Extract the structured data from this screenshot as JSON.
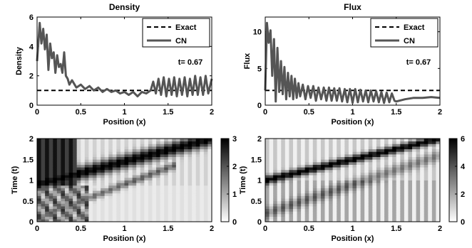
{
  "chart_data": [
    {
      "type": "line",
      "title": "Density",
      "xlabel": "Position (x)",
      "ylabel": "Density",
      "xlim": [
        0,
        2
      ],
      "ylim": [
        0,
        6
      ],
      "xticks": [
        "0",
        "0.5",
        "1",
        "1.5",
        "2"
      ],
      "yticks": [
        "0",
        "2",
        "4",
        "6"
      ],
      "annotation": "t= 0.67",
      "legend": {
        "position": "top-right",
        "entries": [
          "Exact",
          "CN"
        ]
      },
      "series": [
        {
          "name": "Exact",
          "style": "dashed",
          "color": "#000000",
          "x": [
            0,
            2
          ],
          "y": [
            1,
            1
          ]
        },
        {
          "name": "CN",
          "style": "solid",
          "color": "#555555",
          "x": [
            0,
            0.03,
            0.05,
            0.07,
            0.09,
            0.11,
            0.13,
            0.15,
            0.17,
            0.19,
            0.21,
            0.23,
            0.25,
            0.27,
            0.29,
            0.31,
            0.33,
            0.35,
            0.37,
            0.4,
            0.45,
            0.5,
            0.55,
            0.6,
            0.65,
            0.7,
            0.75,
            0.8,
            0.85,
            0.9,
            0.95,
            1.0,
            1.05,
            1.1,
            1.15,
            1.2,
            1.25,
            1.3,
            1.33,
            1.36,
            1.39,
            1.42,
            1.45,
            1.48,
            1.51,
            1.54,
            1.57,
            1.6,
            1.63,
            1.66,
            1.69,
            1.72,
            1.75,
            1.78,
            1.81,
            1.84,
            1.87,
            1.9,
            1.93,
            1.96,
            2.0
          ],
          "y": [
            3.0,
            5.6,
            4.2,
            5.2,
            3.8,
            4.8,
            2.4,
            4.2,
            3.2,
            3.6,
            2.2,
            3.4,
            2.6,
            2.8,
            2.2,
            3.6,
            2.0,
            1.8,
            1.4,
            1.7,
            1.2,
            1.4,
            1.1,
            1.3,
            1.0,
            1.2,
            0.9,
            1.1,
            0.9,
            1.0,
            0.8,
            0.9,
            0.7,
            0.9,
            0.6,
            0.9,
            0.8,
            1.0,
            1.6,
            0.8,
            1.8,
            0.7,
            1.9,
            0.6,
            1.8,
            0.7,
            1.9,
            0.6,
            1.8,
            0.7,
            1.9,
            0.6,
            1.8,
            0.7,
            2.0,
            0.7,
            1.9,
            0.7,
            2.0,
            0.8,
            1.8
          ]
        }
      ]
    },
    {
      "type": "line",
      "title": "Flux",
      "xlabel": "Position (x)",
      "ylabel": "Flux",
      "xlim": [
        0,
        2
      ],
      "ylim": [
        0,
        12
      ],
      "xticks": [
        "0",
        "0.5",
        "1",
        "1.5",
        "2"
      ],
      "yticks": [
        "0",
        "5",
        "10"
      ],
      "annotation": "t= 0.67",
      "legend": {
        "position": "top-right",
        "entries": [
          "Exact",
          "CN"
        ]
      },
      "series": [
        {
          "name": "Exact",
          "style": "dashed",
          "color": "#000000",
          "x": [
            0,
            2
          ],
          "y": [
            2,
            2
          ]
        },
        {
          "name": "CN",
          "style": "solid",
          "color": "#555555",
          "x": [
            0,
            0.02,
            0.04,
            0.06,
            0.08,
            0.1,
            0.12,
            0.14,
            0.16,
            0.18,
            0.2,
            0.22,
            0.24,
            0.26,
            0.28,
            0.3,
            0.32,
            0.34,
            0.36,
            0.38,
            0.4,
            0.43,
            0.46,
            0.49,
            0.52,
            0.55,
            0.58,
            0.61,
            0.64,
            0.67,
            0.7,
            0.73,
            0.76,
            0.79,
            0.82,
            0.85,
            0.88,
            0.91,
            0.94,
            0.97,
            1.0,
            1.03,
            1.06,
            1.09,
            1.12,
            1.15,
            1.18,
            1.21,
            1.24,
            1.27,
            1.3,
            1.33,
            1.36,
            1.39,
            1.42,
            1.45,
            1.48,
            1.5,
            1.6,
            1.7,
            1.8,
            1.9,
            2.0
          ],
          "y": [
            2,
            11.2,
            8.5,
            10.2,
            4.0,
            9.0,
            0.5,
            7.8,
            1.8,
            6.0,
            1.5,
            5.2,
            0.8,
            4.4,
            1.2,
            4.0,
            0.8,
            3.6,
            1.0,
            3.0,
            1.2,
            2.8,
            0.8,
            2.6,
            1.0,
            2.6,
            0.6,
            2.4,
            0.8,
            2.4,
            0.6,
            2.4,
            0.6,
            2.3,
            0.6,
            2.3,
            0.5,
            2.2,
            0.4,
            2.2,
            0.3,
            2.2,
            0.4,
            2.1,
            0.5,
            2.0,
            0.4,
            2.0,
            0.5,
            1.9,
            0.4,
            1.8,
            0.3,
            1.7,
            0.4,
            1.6,
            0.6,
            0.5,
            0.8,
            1.0,
            1.0,
            1.1,
            1.0
          ]
        }
      ]
    },
    {
      "type": "heatmap",
      "xlabel": "Position (x)",
      "ylabel": "Time (t)",
      "xlim": [
        0,
        2
      ],
      "ylim": [
        0,
        2
      ],
      "xticks": [
        "0",
        "0.5",
        "1",
        "1.5",
        "2"
      ],
      "yticks": [
        "0",
        "0.5",
        "1",
        "1.5",
        "2"
      ],
      "colorbar": {
        "range": [
          0,
          3
        ],
        "ticks": [
          "0",
          "1",
          "2",
          "3"
        ]
      },
      "colormap": "gray-reversed"
    },
    {
      "type": "heatmap",
      "xlabel": "Position (x)",
      "ylabel": "Time (t)",
      "xlim": [
        0,
        2
      ],
      "ylim": [
        0,
        2
      ],
      "xticks": [
        "0",
        "0.5",
        "1",
        "1.5",
        "2"
      ],
      "yticks": [
        "0",
        "0.5",
        "1",
        "1.5",
        "2"
      ],
      "colorbar": {
        "range": [
          0,
          6
        ],
        "ticks": [
          "0",
          "2",
          "4",
          "6"
        ]
      },
      "colormap": "gray-reversed"
    }
  ]
}
